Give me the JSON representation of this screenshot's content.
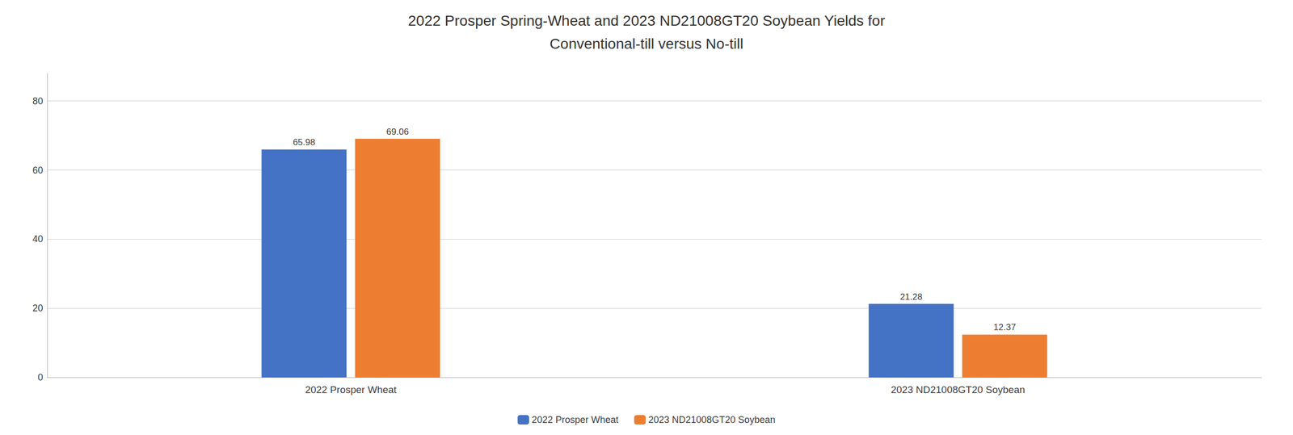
{
  "chart_data": {
    "type": "bar",
    "title": "2022 Prosper Spring-Wheat and 2023 ND21008GT20 Soybean Yields for\nConventional-till versus No-till",
    "categories": [
      "2022 Prosper Wheat",
      "2023 ND21008GT20 Soybean"
    ],
    "series": [
      {
        "name": "2022 Prosper Wheat",
        "color": "#4472C4",
        "values": [
          65.98,
          21.28
        ]
      },
      {
        "name": "2023 ND21008GT20 Soybean",
        "color": "#ED7D31",
        "values": [
          69.06,
          12.37
        ]
      }
    ],
    "ylim": [
      0,
      88
    ],
    "yticks": [
      0,
      20,
      40,
      60,
      80
    ],
    "grid": true,
    "legend": "bottom",
    "data_labels": true
  }
}
